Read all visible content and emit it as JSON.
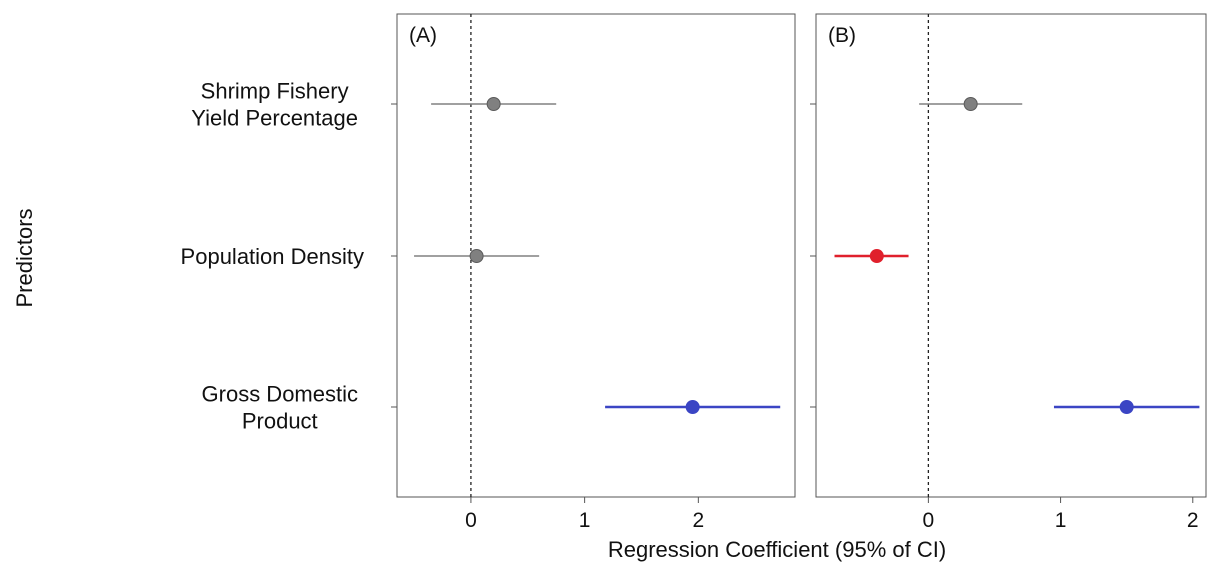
{
  "chart_data": {
    "type": "forest",
    "xlabel": "Regression Coefficient (95% of CI)",
    "ylabel": "Predictors",
    "predictors": [
      {
        "label_lines": [
          "Shrimp Fishery",
          "Yield Percentage"
        ]
      },
      {
        "label_lines": [
          "Population Density"
        ]
      },
      {
        "label_lines": [
          "Gross Domestic",
          "Product"
        ]
      }
    ],
    "reference_line": 0,
    "panels": [
      {
        "tag": "(A)",
        "xlim": [
          -0.65,
          2.85
        ],
        "xticks": [
          0,
          1,
          2
        ],
        "estimates": [
          {
            "estimate": 0.2,
            "lower": -0.35,
            "upper": 0.75,
            "color": "#808080"
          },
          {
            "estimate": 0.05,
            "lower": -0.5,
            "upper": 0.6,
            "color": "#808080"
          },
          {
            "estimate": 1.95,
            "lower": 1.18,
            "upper": 2.72,
            "color": "#3b45c4"
          }
        ]
      },
      {
        "tag": "(B)",
        "xlim": [
          -0.85,
          2.1
        ],
        "xticks": [
          0,
          1,
          2
        ],
        "estimates": [
          {
            "estimate": 0.32,
            "lower": -0.07,
            "upper": 0.71,
            "color": "#808080"
          },
          {
            "estimate": -0.39,
            "lower": -0.71,
            "upper": -0.15,
            "color": "#e0202c"
          },
          {
            "estimate": 1.5,
            "lower": 0.95,
            "upper": 2.05,
            "color": "#3b45c4"
          }
        ]
      }
    ]
  }
}
